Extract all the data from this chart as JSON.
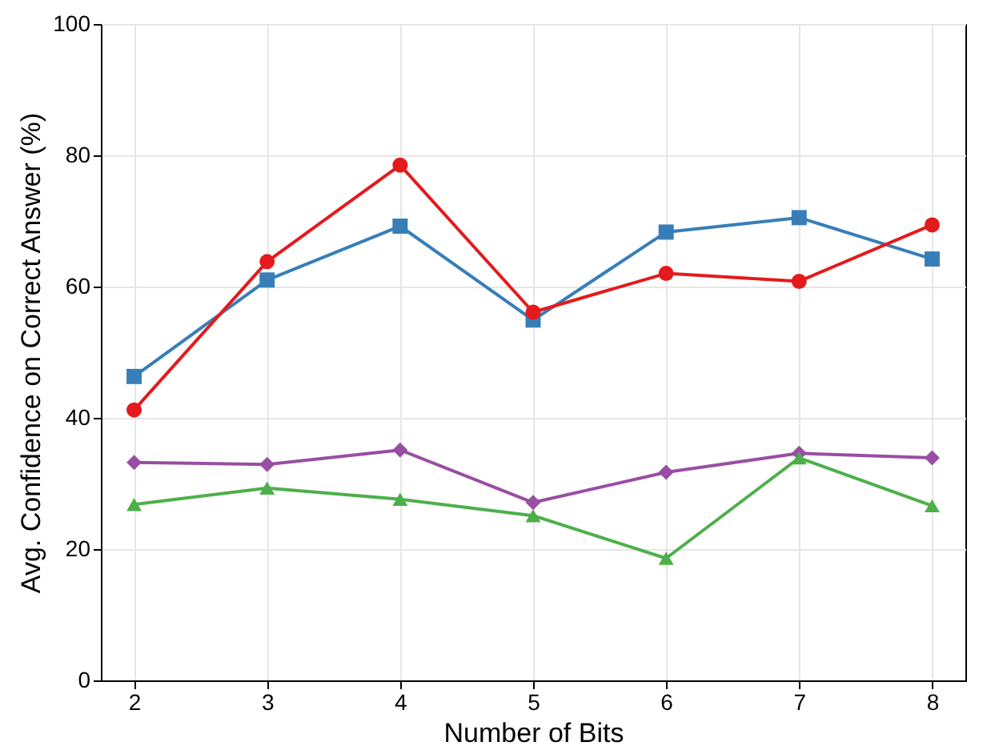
{
  "chart_data": {
    "type": "line",
    "xlabel": "Number of Bits",
    "ylabel": "Avg. Confidence on Correct Answer (%)",
    "x": [
      2,
      3,
      4,
      5,
      6,
      7,
      8
    ],
    "xlim": [
      1.75,
      8.25
    ],
    "xticks": [
      2,
      3,
      4,
      5,
      6,
      7,
      8
    ],
    "ylim": [
      0,
      100
    ],
    "yticks": [
      0,
      20,
      40,
      60,
      80,
      100
    ],
    "grid": true,
    "line_style": "solid",
    "series": [
      {
        "color": "#e41a1c",
        "marker": "circle",
        "values": [
          41.2,
          63.8,
          78.5,
          56.1,
          62,
          60.8,
          69.4
        ]
      },
      {
        "color": "#377eb8",
        "marker": "square",
        "values": [
          46.3,
          61,
          69.2,
          54.9,
          68.3,
          70.5,
          64.2
        ]
      },
      {
        "color": "#4daf4a",
        "marker": "triangle",
        "values": [
          26.8,
          29.3,
          27.6,
          25.1,
          18.6,
          33.9,
          26.6
        ]
      },
      {
        "color": "#984ea3",
        "marker": "diamond",
        "values": [
          33.2,
          32.9,
          35.1,
          27.1,
          31.7,
          34.6,
          33.9
        ]
      }
    ]
  }
}
